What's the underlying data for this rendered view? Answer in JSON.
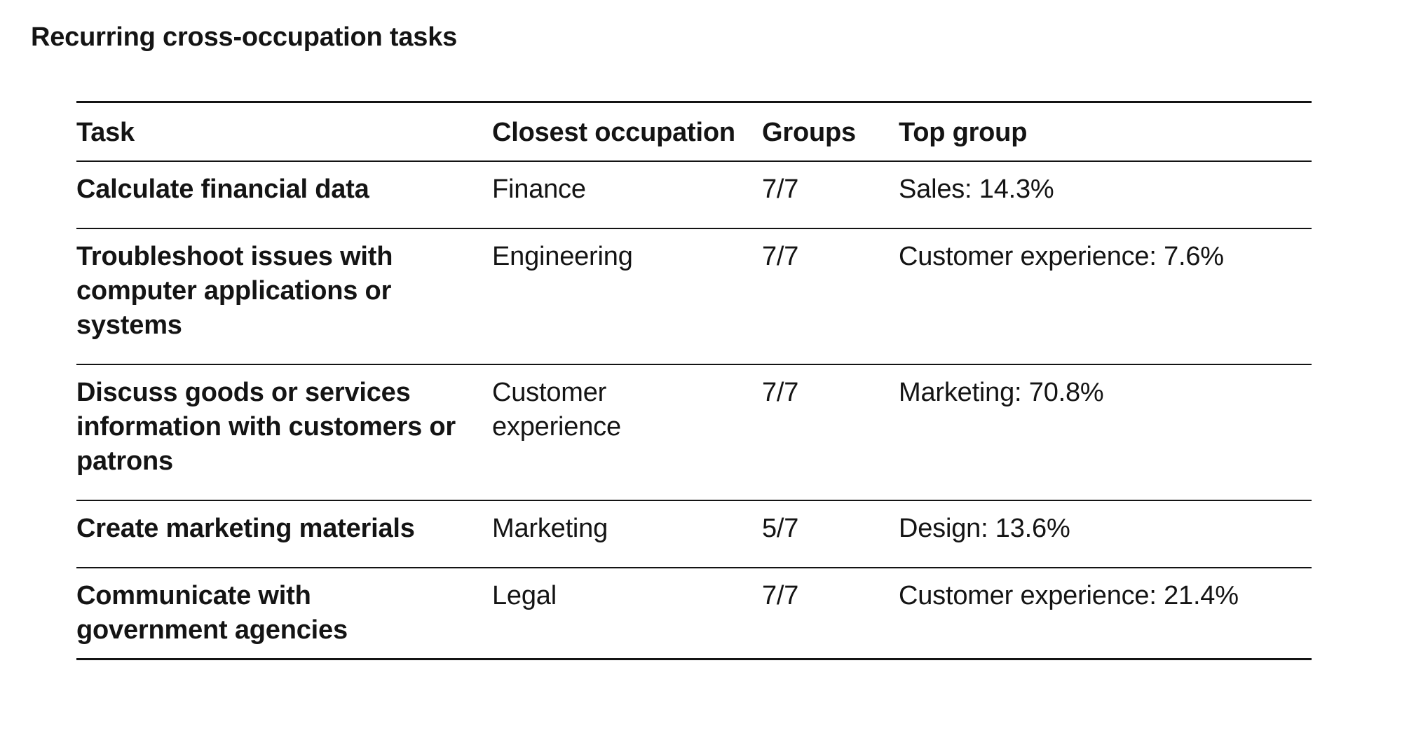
{
  "title": "Recurring cross-occupation tasks",
  "table": {
    "headers": {
      "task": "Task",
      "closest_occupation": "Closest occupation",
      "groups": "Groups",
      "top_group": "Top group"
    },
    "rows": [
      {
        "task": "Calculate financial data",
        "closest_occupation": "Finance",
        "groups": "7/7",
        "top_group": "Sales: 14.3%"
      },
      {
        "task": "Troubleshoot issues with computer applications or systems",
        "closest_occupation": "Engineering",
        "groups": "7/7",
        "top_group": "Customer experience: 7.6%"
      },
      {
        "task": "Discuss goods or services information with customers or patrons",
        "closest_occupation": "Customer experience",
        "groups": "7/7",
        "top_group": "Marketing: 70.8%"
      },
      {
        "task": "Create marketing materials",
        "closest_occupation": "Marketing",
        "groups": "5/7",
        "top_group": "Design: 13.6%"
      },
      {
        "task": "Communicate with government agencies",
        "closest_occupation": "Legal",
        "groups": "7/7",
        "top_group": "Customer experience: 21.4%"
      }
    ]
  }
}
